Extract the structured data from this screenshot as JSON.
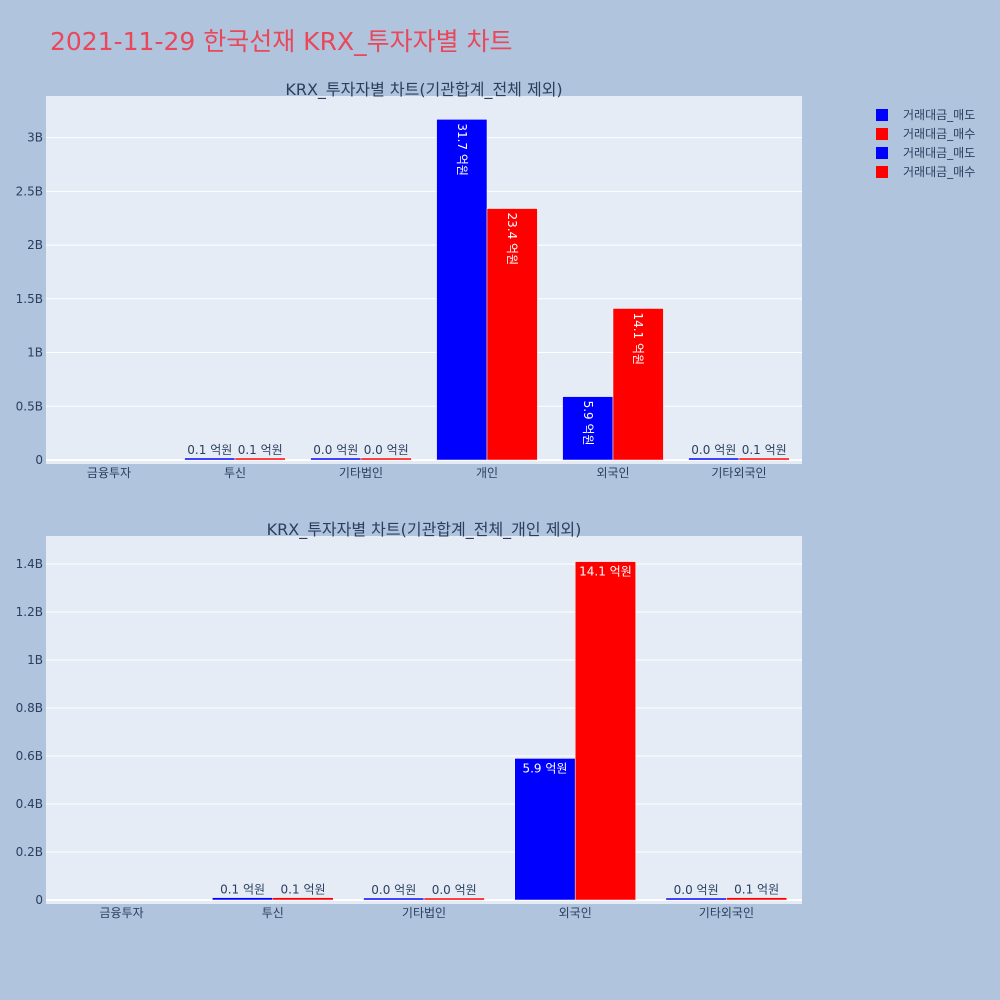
{
  "page": {
    "title": "2021-11-29 한국선재 KRX_투자자별 차트"
  },
  "colors": {
    "page_bg": "#b0c4de",
    "plot_bg": "#e5ecf6",
    "sell": "#0000ff",
    "buy": "#ff0000",
    "title": "#e8485a",
    "text": "#2a3f5f"
  },
  "legend": [
    {
      "label": "거래대금_매도",
      "color": "#0000ff"
    },
    {
      "label": "거래대금_매수",
      "color": "#ff0000"
    },
    {
      "label": "거래대금_매도",
      "color": "#0000ff"
    },
    {
      "label": "거래대금_매수",
      "color": "#ff0000"
    }
  ],
  "chart_data": [
    {
      "type": "bar",
      "title": "KRX_투자자별 차트(기관합계_전체 제외)",
      "categories": [
        "금융투자",
        "투신",
        "기타법인",
        "개인",
        "외국인",
        "기타외국인"
      ],
      "ylim": [
        0,
        3350000000
      ],
      "yticks": [
        0,
        500000000,
        1000000000,
        1500000000,
        2000000000,
        2500000000,
        3000000000
      ],
      "ytick_labels": [
        "0",
        "0.5B",
        "1B",
        "1.5B",
        "2B",
        "2.5B",
        "3B"
      ],
      "series": [
        {
          "name": "거래대금_매도",
          "color": "#0000ff",
          "values": [
            0,
            10000000,
            2000000,
            3170000000,
            590000000,
            2000000
          ],
          "labels": [
            "",
            "0.1 억원",
            "0.0 억원",
            "31.7 억원",
            "5.9 억원",
            "0.0 억원"
          ]
        },
        {
          "name": "거래대금_매수",
          "color": "#ff0000",
          "values": [
            0,
            10000000,
            2000000,
            2340000000,
            1410000000,
            10000000
          ],
          "labels": [
            "",
            "0.1 억원",
            "0.0 억원",
            "23.4 억원",
            "14.1 억원",
            "0.1 억원"
          ]
        }
      ]
    },
    {
      "type": "bar",
      "title": "KRX_투자자별 차트(기관합계_전체_개인 제외)",
      "categories": [
        "금융투자",
        "투신",
        "기타법인",
        "외국인",
        "기타외국인"
      ],
      "ylim": [
        0,
        1500000000
      ],
      "yticks": [
        0,
        200000000,
        400000000,
        600000000,
        800000000,
        1000000000,
        1200000000,
        1400000000
      ],
      "ytick_labels": [
        "0",
        "0.2B",
        "0.4B",
        "0.6B",
        "0.8B",
        "1B",
        "1.2B",
        "1.4B"
      ],
      "series": [
        {
          "name": "거래대금_매도",
          "color": "#0000ff",
          "values": [
            0,
            10000000,
            2000000,
            590000000,
            2000000
          ],
          "labels": [
            "",
            "0.1 억원",
            "0.0 억원",
            "5.9 억원",
            "0.0 억원"
          ]
        },
        {
          "name": "거래대금_매수",
          "color": "#ff0000",
          "values": [
            0,
            10000000,
            2000000,
            1410000000,
            10000000
          ],
          "labels": [
            "",
            "0.1 억원",
            "0.0 억원",
            "14.1 억원",
            "0.1 억원"
          ]
        }
      ]
    }
  ]
}
